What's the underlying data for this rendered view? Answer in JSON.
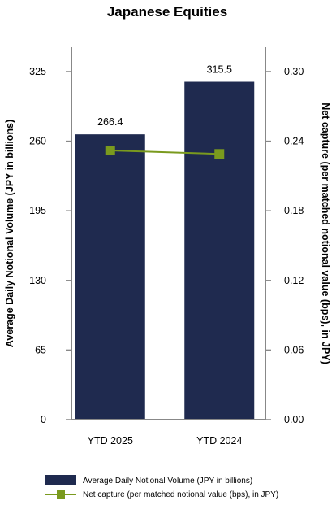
{
  "chart_data": {
    "type": "bar",
    "title": "Japanese Equities",
    "categories": [
      "YTD 2025",
      "YTD 2024"
    ],
    "bar_series": {
      "name": "Average Daily Notional Volume (JPY in billions)",
      "values": [
        266.4,
        315.5
      ],
      "value_labels": [
        "266.4",
        "315.5"
      ],
      "color": "#1f2a4f"
    },
    "line_series": {
      "name": "Net capture (per matched notional value (bps), in JPY)",
      "values": [
        0.232,
        0.229
      ],
      "color": "#7a9a1e"
    },
    "y_left": {
      "label": "Average Daily Notional Volume (JPY in billions)",
      "min": 0,
      "max": 325,
      "ticks": [
        "0",
        "65",
        "130",
        "195",
        "260",
        "325"
      ]
    },
    "y_right": {
      "label": "Net capture (per matched notional value (bps), in JPY)",
      "min": 0,
      "max": 0.3,
      "ticks": [
        "0.00",
        "0.06",
        "0.12",
        "0.18",
        "0.24",
        "0.30"
      ]
    },
    "grid": false,
    "legend_position": "bottom"
  }
}
